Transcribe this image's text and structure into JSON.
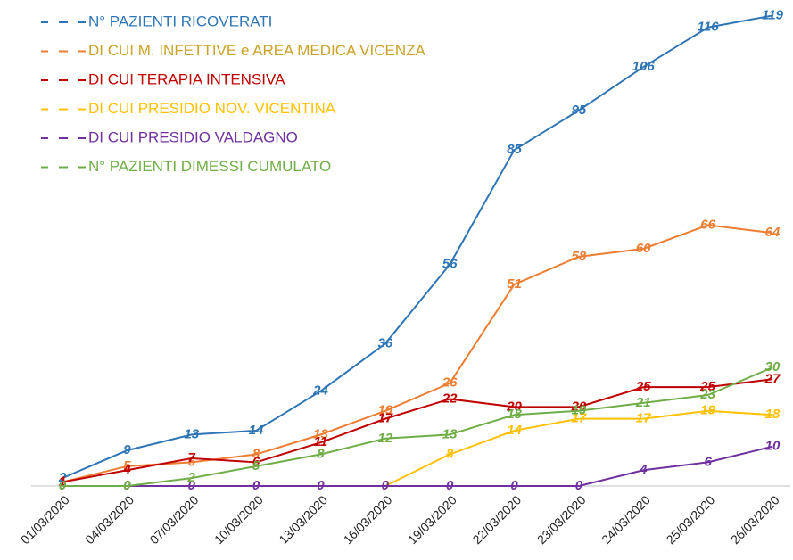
{
  "chart_data": {
    "type": "line",
    "categories": [
      "01/03/2020",
      "04/03/2020",
      "07/03/2020",
      "10/03/2020",
      "13/03/2020",
      "16/03/2020",
      "19/03/2020",
      "22/03/2020",
      "23/03/2020",
      "24/03/2020",
      "25/03/2020",
      "26/03/2020"
    ],
    "series": [
      {
        "name": "N° PAZIENTI RICOVERATI",
        "color": "#2e75b6",
        "values": [
          2,
          9,
          13,
          14,
          24,
          36,
          56,
          85,
          95,
          106,
          116,
          119
        ]
      },
      {
        "name": "DI CUI M. INFETTIVE e AREA MEDICA VICENZA",
        "color": "#ed7d31",
        "values": [
          1,
          5,
          6,
          8,
          13,
          19,
          26,
          51,
          58,
          60,
          66,
          64
        ]
      },
      {
        "name": "DI CUI TERAPIA INTENSIVA",
        "color": "#c00000",
        "values": [
          1,
          4,
          7,
          6,
          11,
          17,
          22,
          20,
          20,
          25,
          25,
          27
        ]
      },
      {
        "name": "DI CUI PRESIDIO NOV. VICENTINA",
        "color": "#ffc000",
        "values": [
          null,
          null,
          null,
          null,
          null,
          0,
          8,
          14,
          17,
          17,
          19,
          18
        ]
      },
      {
        "name": "DI CUI PRESIDIO VALDAGNO",
        "color": "#7030a0",
        "values": [
          0,
          0,
          0,
          0,
          0,
          0,
          0,
          0,
          0,
          4,
          6,
          10
        ]
      },
      {
        "name": "N° PAZIENTI DIMESSI CUMULATO",
        "color": "#70ad47",
        "values": [
          0,
          0,
          2,
          5,
          8,
          12,
          13,
          18,
          19,
          21,
          23,
          30
        ]
      }
    ],
    "ylim": [
      0,
      120
    ],
    "legend": "top-left"
  }
}
